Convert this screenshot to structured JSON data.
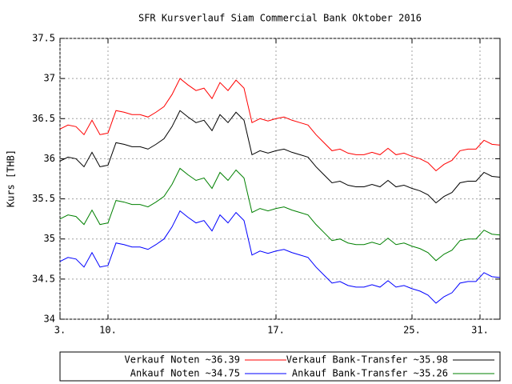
{
  "chart_data": {
    "type": "line",
    "title": "SFR Kursverlauf Siam Commercial Bank Oktober 2016",
    "ylabel": "Kurs [THB]",
    "x": [
      0,
      1,
      2,
      3,
      4,
      5,
      6,
      7,
      8,
      9,
      10,
      11,
      12,
      13,
      14,
      15,
      16,
      17,
      18,
      19,
      20,
      21,
      22,
      23,
      24,
      25,
      26,
      27,
      28,
      29,
      30,
      31,
      32,
      33,
      34,
      35,
      36,
      37,
      38,
      39,
      40,
      41,
      42,
      43,
      44,
      45,
      46,
      47,
      48,
      49,
      50,
      51,
      52,
      53,
      54,
      55
    ],
    "xlim": [
      0,
      55
    ],
    "xticks": [
      {
        "value": 0,
        "label": "3."
      },
      {
        "value": 6,
        "label": "10."
      },
      {
        "value": 27,
        "label": "17."
      },
      {
        "value": 44,
        "label": "25."
      },
      {
        "value": 52.5,
        "label": "31."
      }
    ],
    "ylim": [
      34,
      37.5
    ],
    "yticks": [
      34,
      34.5,
      35,
      35.5,
      36,
      36.5,
      37,
      37.5
    ],
    "grid": true,
    "legend": "bottom",
    "series": [
      {
        "name": "Verkauf Noten ~36.39",
        "color": "#ff0000",
        "values": [
          36.37,
          36.42,
          36.4,
          36.3,
          36.48,
          36.3,
          36.32,
          36.6,
          36.58,
          36.55,
          36.55,
          36.52,
          36.58,
          36.65,
          36.8,
          37.0,
          36.92,
          36.85,
          36.88,
          36.75,
          36.95,
          36.85,
          36.98,
          36.88,
          36.45,
          36.5,
          36.47,
          36.5,
          36.52,
          36.48,
          36.45,
          36.42,
          36.3,
          36.2,
          36.1,
          36.12,
          36.07,
          36.05,
          36.05,
          36.08,
          36.05,
          36.13,
          36.05,
          36.07,
          36.03,
          36.0,
          35.95,
          35.85,
          35.93,
          35.98,
          36.1,
          36.12,
          36.12,
          36.23,
          36.18,
          36.17
        ]
      },
      {
        "name": "Verkauf Bank-Transfer ~35.98",
        "color": "#000000",
        "values": [
          35.97,
          36.02,
          36.0,
          35.9,
          36.08,
          35.9,
          35.92,
          36.2,
          36.18,
          36.15,
          36.15,
          36.12,
          36.18,
          36.25,
          36.4,
          36.6,
          36.52,
          36.45,
          36.48,
          36.35,
          36.55,
          36.45,
          36.58,
          36.48,
          36.05,
          36.1,
          36.07,
          36.1,
          36.12,
          36.08,
          36.05,
          36.02,
          35.9,
          35.8,
          35.7,
          35.72,
          35.67,
          35.65,
          35.65,
          35.68,
          35.65,
          35.73,
          35.65,
          35.67,
          35.63,
          35.6,
          35.55,
          35.45,
          35.53,
          35.58,
          35.7,
          35.72,
          35.72,
          35.83,
          35.78,
          35.77
        ]
      },
      {
        "name": "Ankauf Noten ~34.75",
        "color": "#0000ff",
        "values": [
          34.72,
          34.77,
          34.75,
          34.65,
          34.83,
          34.65,
          34.67,
          34.95,
          34.93,
          34.9,
          34.9,
          34.87,
          34.93,
          35.0,
          35.15,
          35.35,
          35.27,
          35.2,
          35.23,
          35.1,
          35.3,
          35.2,
          35.33,
          35.23,
          34.8,
          34.85,
          34.82,
          34.85,
          34.87,
          34.83,
          34.8,
          34.77,
          34.65,
          34.55,
          34.45,
          34.47,
          34.42,
          34.4,
          34.4,
          34.43,
          34.4,
          34.48,
          34.4,
          34.42,
          34.38,
          34.35,
          34.3,
          34.2,
          34.28,
          34.33,
          34.45,
          34.47,
          34.47,
          34.58,
          34.53,
          34.52
        ]
      },
      {
        "name": "Ankauf Bank-Transfer ~35.26",
        "color": "#008000",
        "values": [
          35.25,
          35.3,
          35.28,
          35.18,
          35.36,
          35.18,
          35.2,
          35.48,
          35.46,
          35.43,
          35.43,
          35.4,
          35.46,
          35.53,
          35.68,
          35.88,
          35.8,
          35.73,
          35.76,
          35.63,
          35.83,
          35.73,
          35.86,
          35.76,
          35.33,
          35.38,
          35.35,
          35.38,
          35.4,
          35.36,
          35.33,
          35.3,
          35.18,
          35.08,
          34.98,
          35.0,
          34.95,
          34.93,
          34.93,
          34.96,
          34.93,
          35.01,
          34.93,
          34.95,
          34.91,
          34.88,
          34.83,
          34.73,
          34.81,
          34.86,
          34.98,
          35.0,
          35.0,
          35.11,
          35.06,
          35.05
        ]
      }
    ]
  }
}
